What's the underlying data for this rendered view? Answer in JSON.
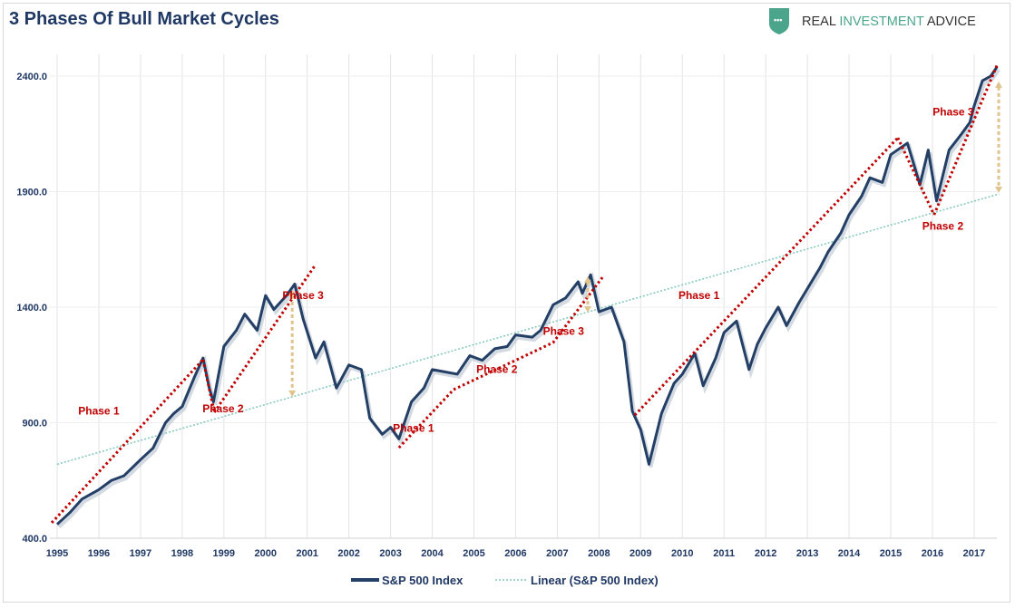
{
  "header": {
    "title": "3 Phases Of Bull Market Cycles",
    "logo_text_1": "REAL",
    "logo_text_2": "INVESTMENT",
    "logo_text_3": "ADVICE"
  },
  "colors": {
    "series": "#243f66",
    "trend": "#7fc7b8",
    "phase_line": "#c00000",
    "arrow": "#e0c48e",
    "logo": "#4aa58a"
  },
  "chart_data": {
    "type": "line",
    "title": "3 Phases Of Bull Market Cycles",
    "xlim": [
      1995,
      2017.6
    ],
    "ylim": [
      400,
      2550
    ],
    "x_ticks": [
      "1995",
      "1996",
      "1997",
      "1998",
      "1999",
      "2000",
      "2001",
      "2002",
      "2003",
      "2004",
      "2005",
      "2006",
      "2007",
      "2008",
      "2009",
      "2010",
      "2011",
      "2012",
      "2013",
      "2014",
      "2015",
      "2016",
      "2017"
    ],
    "y_ticks": [
      "400.0",
      "900.0",
      "1400.0",
      "1900.0",
      "2400.0"
    ],
    "y_tick_values": [
      400,
      900,
      1400,
      1900,
      2400
    ],
    "grid": "vertical",
    "legend_position": "bottom",
    "series": [
      {
        "name": "S&P 500 Index",
        "x": [
          1995.0,
          1995.3,
          1995.6,
          1996.0,
          1996.3,
          1996.6,
          1997.0,
          1997.3,
          1997.6,
          1997.8,
          1998.0,
          1998.3,
          1998.5,
          1998.65,
          1998.75,
          1999.0,
          1999.3,
          1999.5,
          1999.8,
          2000.0,
          2000.2,
          2000.5,
          2000.7,
          2000.9,
          2001.2,
          2001.4,
          2001.7,
          2002.0,
          2002.3,
          2002.5,
          2002.8,
          2003.0,
          2003.2,
          2003.5,
          2003.8,
          2004.0,
          2004.3,
          2004.6,
          2004.9,
          2005.2,
          2005.5,
          2005.8,
          2006.0,
          2006.4,
          2006.6,
          2006.9,
          2007.2,
          2007.5,
          2007.6,
          2007.8,
          2008.0,
          2008.3,
          2008.6,
          2008.8,
          2009.0,
          2009.2,
          2009.5,
          2009.8,
          2010.0,
          2010.3,
          2010.5,
          2010.8,
          2011.0,
          2011.3,
          2011.6,
          2011.8,
          2012.0,
          2012.3,
          2012.5,
          2012.8,
          2013.0,
          2013.3,
          2013.5,
          2013.8,
          2014.0,
          2014.3,
          2014.5,
          2014.8,
          2015.0,
          2015.4,
          2015.7,
          2015.9,
          2016.1,
          2016.4,
          2016.7,
          2016.9,
          2017.0,
          2017.2,
          2017.4,
          2017.55
        ],
        "values": [
          460,
          510,
          570,
          610,
          650,
          670,
          740,
          790,
          900,
          940,
          970,
          1100,
          1180,
          1050,
          990,
          1230,
          1300,
          1370,
          1300,
          1450,
          1390,
          1450,
          1500,
          1350,
          1180,
          1250,
          1050,
          1150,
          1130,
          920,
          850,
          880,
          830,
          990,
          1050,
          1130,
          1120,
          1110,
          1190,
          1170,
          1220,
          1230,
          1280,
          1270,
          1300,
          1410,
          1440,
          1510,
          1460,
          1540,
          1380,
          1400,
          1250,
          950,
          870,
          720,
          940,
          1070,
          1110,
          1200,
          1060,
          1180,
          1290,
          1340,
          1130,
          1240,
          1310,
          1400,
          1320,
          1420,
          1480,
          1570,
          1640,
          1720,
          1800,
          1880,
          1960,
          1940,
          2060,
          2110,
          1930,
          2080,
          1860,
          2080,
          2150,
          2200,
          2270,
          2380,
          2400,
          2440
        ]
      },
      {
        "name": "Linear (S&P 500 Index)",
        "x": [
          1995,
          2017.6
        ],
        "values": [
          720,
          1890
        ]
      }
    ],
    "annotations": {
      "phase_lines": [
        [
          [
            1994.87,
            467
          ],
          [
            1998.5,
            1173
          ]
        ],
        [
          [
            1998.5,
            1173
          ],
          [
            1998.77,
            945
          ]
        ],
        [
          [
            1998.77,
            945
          ],
          [
            2001.2,
            1584
          ]
        ],
        [
          [
            2003.2,
            792
          ],
          [
            2004.51,
            1043
          ],
          [
            2006.9,
            1247
          ],
          [
            2008.1,
            1533
          ]
        ],
        [
          [
            2008.86,
            933
          ],
          [
            2015.17,
            2133
          ]
        ],
        [
          [
            2015.17,
            2133
          ],
          [
            2016.04,
            1800
          ]
        ],
        [
          [
            2016.04,
            1800
          ],
          [
            2017.55,
            2447
          ]
        ]
      ],
      "arrows": [
        {
          "x": 2000.64,
          "from": 1475,
          "to": 1012
        },
        {
          "x": 2007.73,
          "from": 1533,
          "to": 1377
        },
        {
          "x": 2017.59,
          "from": 2377,
          "to": 1894
        }
      ],
      "labels": [
        {
          "text": "Phase 1",
          "x": 1996.0,
          "y": 935
        },
        {
          "text": "Phase 2",
          "x": 1998.98,
          "y": 945
        },
        {
          "text": "Phase 3",
          "x": 2000.9,
          "y": 1435
        },
        {
          "text": "Phase 1",
          "x": 2003.55,
          "y": 860
        },
        {
          "text": "Phase 2",
          "x": 2005.55,
          "y": 1115
        },
        {
          "text": "Phase 3",
          "x": 2007.15,
          "y": 1280
        },
        {
          "text": "Phase 1",
          "x": 2010.4,
          "y": 1435
        },
        {
          "text": "Phase 3",
          "x": 2016.5,
          "y": 2230
        },
        {
          "text": "Phase 2",
          "x": 2016.25,
          "y": 1735
        }
      ]
    }
  }
}
